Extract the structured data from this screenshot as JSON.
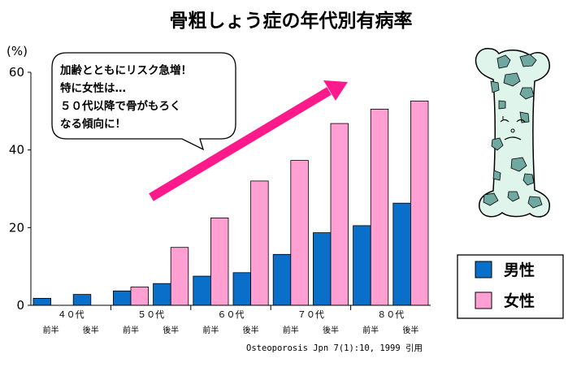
{
  "chart_data": {
    "type": "bar",
    "title": "骨粗しょう症の年代別有病率",
    "ylabel": "(%)",
    "ylim": [
      0,
      60
    ],
    "yticks": [
      "0",
      "20",
      "40",
      "60"
    ],
    "categories": [
      "40代前半",
      "40代後半",
      "50代前半",
      "50代後半",
      "60代前半",
      "60代後半",
      "70代前半",
      "70代後半",
      "80代前半",
      "80代後半"
    ],
    "decade_labels": [
      "４０代",
      "５０代",
      "６０代",
      "７０代",
      "８０代"
    ],
    "half_labels": [
      "前半",
      "後半"
    ],
    "series": [
      {
        "name": "男性",
        "values": [
          1.8,
          2.8,
          3.7,
          5.6,
          7.5,
          8.4,
          13.1,
          18.7,
          20.5,
          26.3
        ]
      },
      {
        "name": "女性",
        "values": [
          0,
          0,
          4.7,
          14.9,
          22.5,
          32.0,
          37.3,
          46.8,
          50.5,
          52.6
        ]
      }
    ],
    "colors": {
      "male": "#0a6fc8",
      "female": "#ff9fd2",
      "arrow": "#ff1a8c"
    },
    "legend_position": "bottom-right",
    "grid": false,
    "source": "Osteoporosis Jpn 7(1):10, 1999 引用"
  },
  "callout": {
    "lines": [
      "加齢とともにリスク急増！",
      "特に女性は…",
      "５０代以降で骨がもろく",
      "なる傾向に！"
    ]
  },
  "illustration": {
    "icon": "fragile-bone-icon"
  }
}
